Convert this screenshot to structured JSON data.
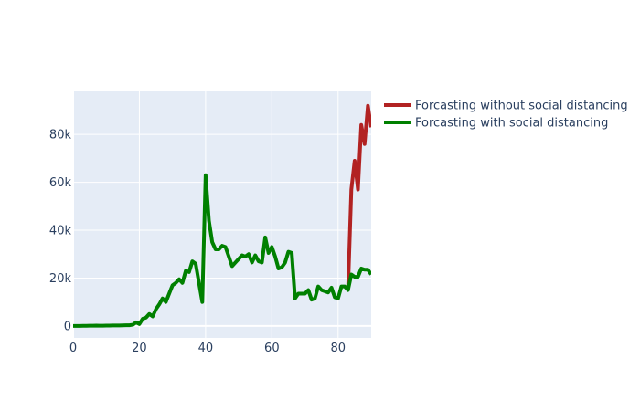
{
  "chart_data": {
    "type": "line",
    "title": "",
    "xlabel": "",
    "ylabel": "",
    "xlim": [
      0,
      90
    ],
    "ylim": [
      -5000,
      98000
    ],
    "x_ticks": [
      0,
      20,
      40,
      60,
      80
    ],
    "x_tick_labels": [
      "0",
      "20",
      "40",
      "60",
      "80"
    ],
    "y_ticks": [
      0,
      20000,
      40000,
      60000,
      80000
    ],
    "y_tick_labels": [
      "0",
      "20k",
      "40k",
      "60k",
      "80k"
    ],
    "grid": true,
    "legend_position": "top-right, outside plot",
    "series": [
      {
        "name": "Forcasting without social distancing",
        "color": "#b22222",
        "x": [
          83,
          84,
          85,
          86,
          87,
          88,
          89,
          90
        ],
        "y": [
          15000,
          57000,
          69000,
          57000,
          84000,
          76000,
          92000,
          83000
        ]
      },
      {
        "name": "Forcasting with social distancing",
        "color": "#008000",
        "x": [
          0,
          1,
          2,
          3,
          4,
          5,
          6,
          7,
          8,
          9,
          10,
          11,
          12,
          13,
          14,
          15,
          16,
          17,
          18,
          19,
          20,
          21,
          22,
          23,
          24,
          25,
          26,
          27,
          28,
          29,
          30,
          31,
          32,
          33,
          34,
          35,
          36,
          37,
          38,
          39,
          40,
          41,
          42,
          43,
          44,
          45,
          46,
          47,
          48,
          49,
          50,
          51,
          52,
          53,
          54,
          55,
          56,
          57,
          58,
          59,
          60,
          61,
          62,
          63,
          64,
          65,
          66,
          67,
          68,
          69,
          70,
          71,
          72,
          73,
          74,
          75,
          76,
          77,
          78,
          79,
          80,
          81,
          82,
          83,
          84,
          85,
          86,
          87,
          88,
          89,
          90
        ],
        "y": [
          0,
          0,
          0,
          50,
          50,
          100,
          100,
          150,
          100,
          100,
          150,
          150,
          200,
          200,
          200,
          250,
          300,
          300,
          500,
          1500,
          800,
          3000,
          3500,
          5000,
          4000,
          7000,
          9000,
          11500,
          10000,
          13500,
          17000,
          18000,
          19500,
          18000,
          23000,
          22500,
          27000,
          26000,
          18000,
          10000,
          63000,
          44000,
          35000,
          32000,
          32000,
          33500,
          33000,
          29000,
          25000,
          26500,
          28000,
          29500,
          29000,
          30000,
          26500,
          29500,
          27000,
          26500,
          37000,
          30500,
          33000,
          29000,
          24000,
          24500,
          26500,
          31000,
          30500,
          11500,
          13500,
          13500,
          13500,
          15000,
          11000,
          11500,
          16500,
          15000,
          14500,
          14000,
          16000,
          12000,
          11500,
          16500,
          16500,
          15000,
          21500,
          20500,
          20500,
          24000,
          23500,
          23500,
          21500
        ]
      }
    ]
  }
}
